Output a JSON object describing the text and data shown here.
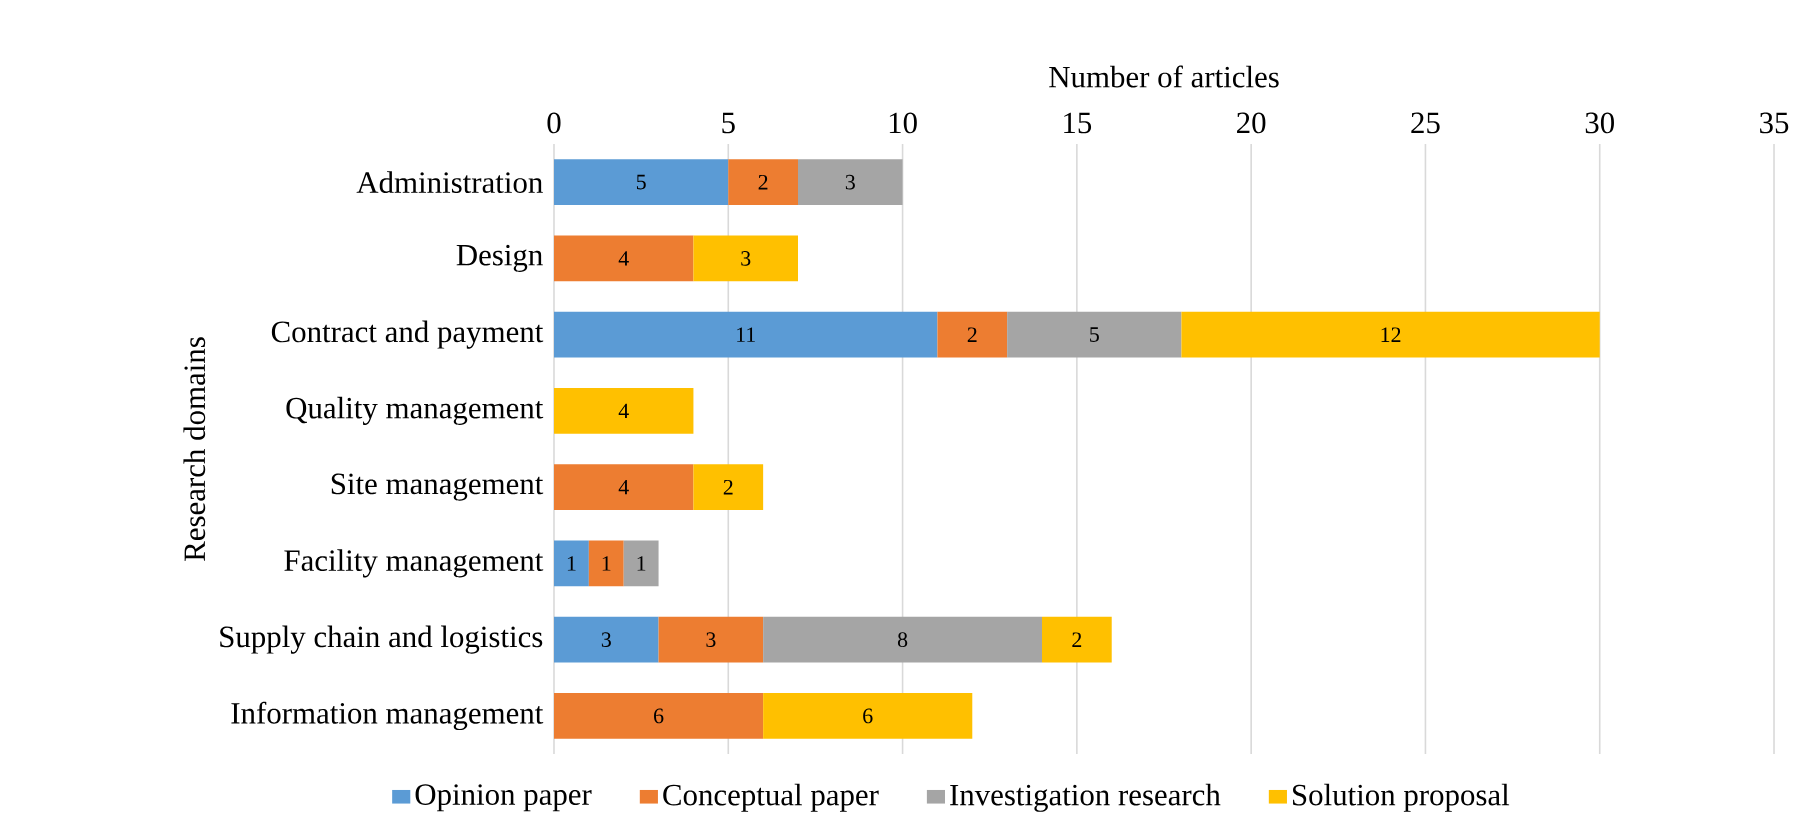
{
  "chart_data": {
    "type": "bar",
    "orientation": "horizontal",
    "stacked": true,
    "xlabel": "Number of articles",
    "ylabel": "Research domains",
    "categories": [
      "Administration",
      "Design",
      "Contract and payment",
      "Quality management",
      "Site management",
      "Facility management",
      "Supply chain and logistics",
      "Information management"
    ],
    "series": [
      {
        "name": "Opinion paper",
        "color": "#5b9bd5",
        "values": [
          5,
          null,
          11,
          null,
          null,
          1,
          3,
          null
        ]
      },
      {
        "name": "Conceptual paper",
        "color": "#ed7d31",
        "values": [
          2,
          4,
          2,
          null,
          4,
          1,
          3,
          6
        ]
      },
      {
        "name": "Investigation research",
        "color": "#a5a5a5",
        "values": [
          3,
          null,
          5,
          null,
          null,
          1,
          8,
          null
        ]
      },
      {
        "name": "Solution proposal",
        "color": "#ffc000",
        "values": [
          null,
          3,
          12,
          4,
          2,
          null,
          2,
          6
        ]
      }
    ],
    "xlim": [
      0,
      35
    ],
    "xticks": [
      0,
      5,
      10,
      15,
      20,
      25,
      30,
      35
    ],
    "grid": "x",
    "legend": "bottom",
    "data_labels": true
  }
}
